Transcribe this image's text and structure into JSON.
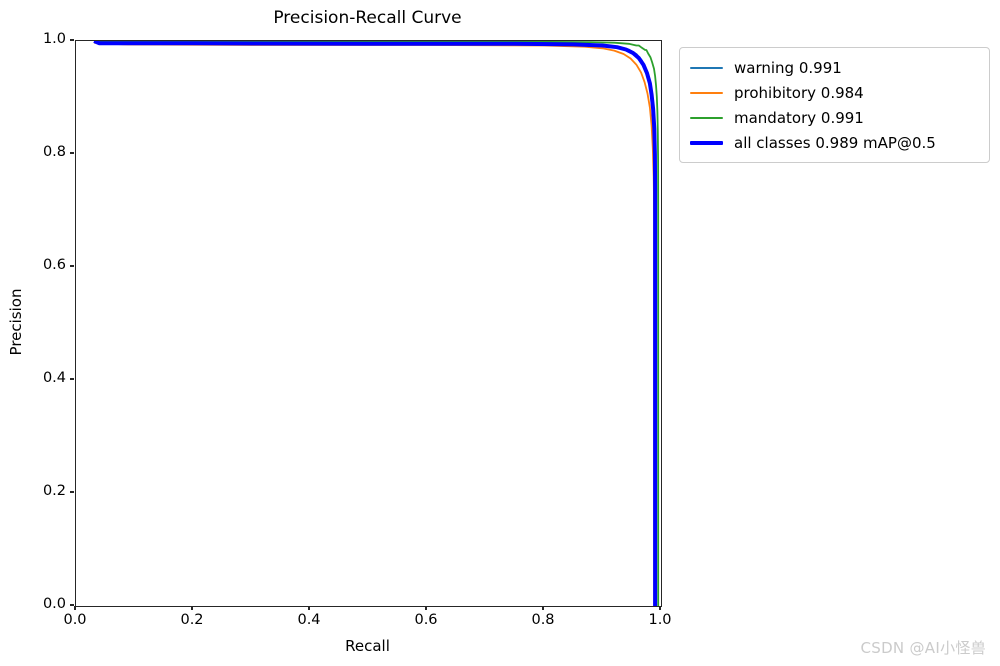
{
  "title": "Precision-Recall Curve",
  "watermark": "CSDN @AI小怪兽",
  "axes": {
    "xlabel": "Recall",
    "ylabel": "Precision"
  },
  "chart_data": {
    "type": "line",
    "title": "Precision-Recall Curve",
    "xlabel": "Recall",
    "ylabel": "Precision",
    "xlim": [
      0.0,
      1.0
    ],
    "ylim": [
      0.0,
      1.0
    ],
    "xticks": [
      "0.0",
      "0.2",
      "0.4",
      "0.6",
      "0.8",
      "1.0"
    ],
    "yticks": [
      "0.0",
      "0.2",
      "0.4",
      "0.6",
      "0.8",
      "1.0"
    ],
    "grid": false,
    "legend_position": "outside-upper-right",
    "series": [
      {
        "name": "warning 0.991",
        "ap": 0.991,
        "color": "#1f77b4",
        "width": 1.8,
        "points": [
          [
            0.031,
            1.0
          ],
          [
            0.05,
            0.998
          ],
          [
            0.4,
            0.997
          ],
          [
            0.7,
            0.996
          ],
          [
            0.85,
            0.995
          ],
          [
            0.9,
            0.993
          ],
          [
            0.925,
            0.99
          ],
          [
            0.945,
            0.985
          ],
          [
            0.958,
            0.977
          ],
          [
            0.967,
            0.966
          ],
          [
            0.974,
            0.952
          ],
          [
            0.979,
            0.935
          ],
          [
            0.983,
            0.913
          ],
          [
            0.986,
            0.885
          ],
          [
            0.988,
            0.85
          ],
          [
            0.9895,
            0.8
          ],
          [
            0.9905,
            0.72
          ],
          [
            0.9905,
            0.0
          ]
        ]
      },
      {
        "name": "prohibitory 0.984",
        "ap": 0.984,
        "color": "#ff7f0e",
        "width": 1.8,
        "points": [
          [
            0.031,
            0.997
          ],
          [
            0.08,
            0.994
          ],
          [
            0.3,
            0.993
          ],
          [
            0.6,
            0.993
          ],
          [
            0.8,
            0.992
          ],
          [
            0.87,
            0.99
          ],
          [
            0.9,
            0.987
          ],
          [
            0.92,
            0.983
          ],
          [
            0.936,
            0.977
          ],
          [
            0.948,
            0.969
          ],
          [
            0.958,
            0.958
          ],
          [
            0.966,
            0.944
          ],
          [
            0.972,
            0.927
          ],
          [
            0.977,
            0.907
          ],
          [
            0.981,
            0.882
          ],
          [
            0.984,
            0.85
          ],
          [
            0.986,
            0.81
          ],
          [
            0.9875,
            0.76
          ],
          [
            0.9885,
            0.68
          ],
          [
            0.9885,
            0.0
          ]
        ]
      },
      {
        "name": "mandatory 0.991",
        "ap": 0.991,
        "color": "#2ca02c",
        "width": 1.8,
        "points": [
          [
            0.031,
            1.0
          ],
          [
            0.3,
            0.999
          ],
          [
            0.7,
            0.999
          ],
          [
            0.88,
            0.998
          ],
          [
            0.92,
            0.997
          ],
          [
            0.945,
            0.995
          ],
          [
            0.958,
            0.992
          ],
          [
            0.962,
            0.992
          ],
          [
            0.966,
            0.989
          ],
          [
            0.973,
            0.984
          ],
          [
            0.975,
            0.984
          ],
          [
            0.978,
            0.978
          ],
          [
            0.982,
            0.971
          ],
          [
            0.985,
            0.962
          ],
          [
            0.988,
            0.951
          ],
          [
            0.99,
            0.938
          ],
          [
            0.9915,
            0.922
          ],
          [
            0.9928,
            0.902
          ],
          [
            0.9938,
            0.875
          ],
          [
            0.9945,
            0.84
          ],
          [
            0.995,
            0.79
          ],
          [
            0.9952,
            0.7
          ],
          [
            0.9952,
            0.0
          ]
        ]
      },
      {
        "name": "all classes 0.989 mAP@0.5",
        "ap": 0.989,
        "color": "#0000ff",
        "width": 4,
        "points": [
          [
            0.031,
            1.0
          ],
          [
            0.04,
            0.996
          ],
          [
            0.2,
            0.996
          ],
          [
            0.5,
            0.995
          ],
          [
            0.75,
            0.995
          ],
          [
            0.85,
            0.994
          ],
          [
            0.9,
            0.992
          ],
          [
            0.925,
            0.989
          ],
          [
            0.94,
            0.985
          ],
          [
            0.952,
            0.979
          ],
          [
            0.962,
            0.97
          ],
          [
            0.97,
            0.958
          ],
          [
            0.976,
            0.943
          ],
          [
            0.981,
            0.925
          ],
          [
            0.984,
            0.905
          ],
          [
            0.9865,
            0.88
          ],
          [
            0.9885,
            0.845
          ],
          [
            0.9895,
            0.8
          ],
          [
            0.99,
            0.74
          ],
          [
            0.99,
            0.0
          ]
        ]
      }
    ]
  }
}
